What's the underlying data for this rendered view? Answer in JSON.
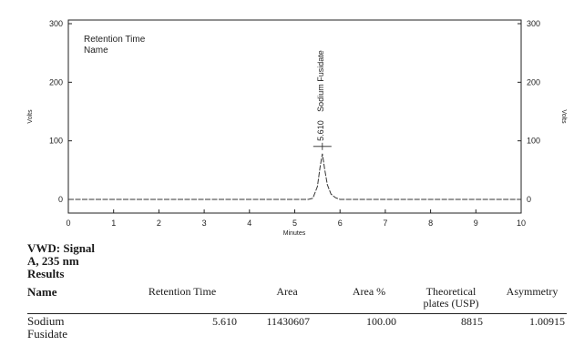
{
  "chart_data": {
    "type": "line",
    "title": "",
    "xlabel": "Minutes",
    "ylabel_left": "Volts",
    "ylabel_right": "Volts",
    "xlim": [
      0,
      10
    ],
    "ylim": [
      -20,
      300
    ],
    "x_ticks": [
      0,
      1,
      2,
      3,
      4,
      5,
      6,
      7,
      8,
      9,
      10
    ],
    "y_ticks": [
      0,
      100,
      200,
      300
    ],
    "legend_lines": [
      "Retention Time",
      "Name"
    ],
    "grid": false,
    "series": [
      {
        "x": [
          0,
          5.0,
          5.3,
          5.4,
          5.5,
          5.56,
          5.61,
          5.66,
          5.72,
          5.8,
          5.9,
          6.0,
          10
        ],
        "y": [
          0,
          0,
          0,
          2,
          22,
          55,
          78,
          52,
          25,
          9,
          3,
          0,
          0
        ]
      }
    ],
    "peaks": [
      {
        "retention_time": "5.610",
        "name": "Sodium Fusidate",
        "x": 5.61,
        "y": 78
      }
    ]
  },
  "results": {
    "signal_lines": [
      "VWD: Signal",
      "A, 235 nm",
      "Results"
    ],
    "headers": {
      "name": "Name",
      "retention_time": "Retention Time",
      "area": "Area",
      "area_pct": "Area %",
      "plates_1": "Theoretical",
      "plates_2": "plates (USP)",
      "asymmetry": "Asymmetry"
    },
    "rows": [
      {
        "name_1": "Sodium",
        "name_2": "Fusidate",
        "retention_time": "5.610",
        "area": "11430607",
        "area_pct": "100.00",
        "plates": "8815",
        "asymmetry": "1.00915"
      }
    ]
  }
}
